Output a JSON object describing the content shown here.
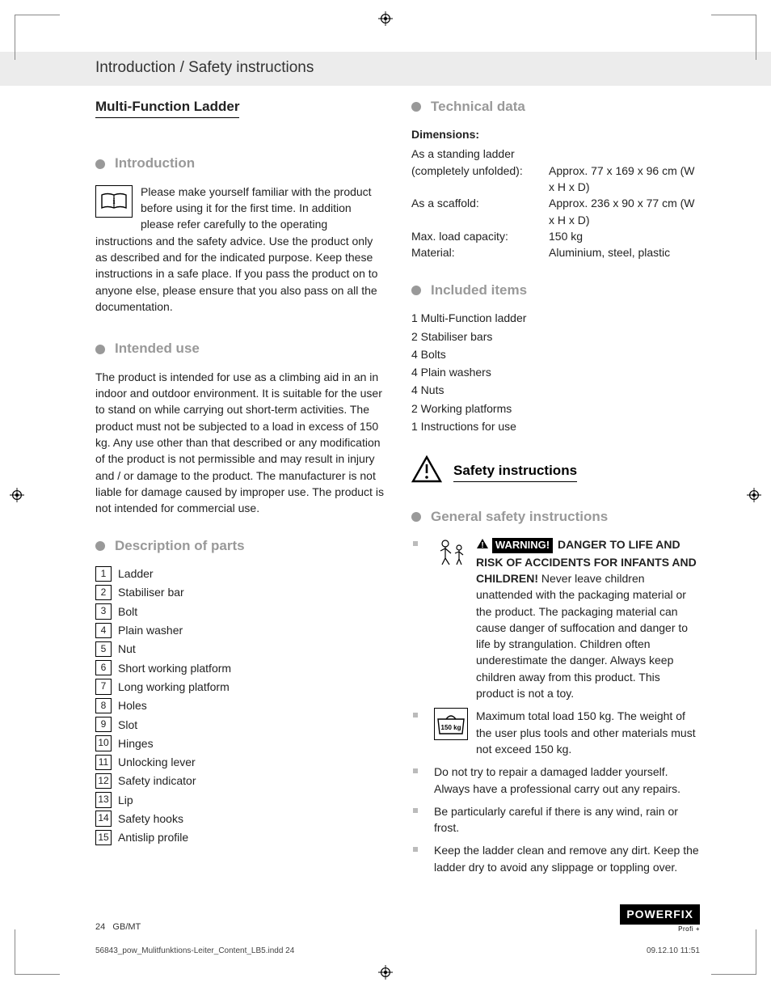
{
  "header_band": "Introduction / Safety instructions",
  "title": "Multi-Function Ladder",
  "sections": {
    "introduction": {
      "heading": "Introduction",
      "body": "Please make yourself familiar with the product before using it for the first time. In addition please refer carefully to the operating instructions and the safety advice. Use the product only as described and for the indicated purpose. Keep these instructions in a safe place. If you pass the product on to anyone else, please ensure that you also pass on all the documentation."
    },
    "intended_use": {
      "heading": "Intended use",
      "body": "The product is intended for use as a climbing aid in an in indoor and outdoor environment. It is suitable for the user to stand on while carrying out short-term activities. The product must not be subjected to a load in excess of 150 kg. Any use other than that described or any modification of the product is not permissible and may result in injury and / or damage to the product. The manufacturer is not liable for damage caused by improper use. The product is not intended for commercial use."
    },
    "description_of_parts": {
      "heading": "Description of parts",
      "items": [
        "Ladder",
        "Stabiliser bar",
        "Bolt",
        "Plain washer",
        "Nut",
        "Short working platform",
        "Long working platform",
        "Holes",
        "Slot",
        "Hinges",
        "Unlocking lever",
        "Safety indicator",
        "Lip",
        "Safety hooks",
        "Antislip profile"
      ]
    },
    "technical_data": {
      "heading": "Technical data",
      "dim_label": "Dimensions:",
      "rows": [
        {
          "k": "As a standing ladder",
          "v": ""
        },
        {
          "k": "(completely unfolded):",
          "v": "Approx. 77 x 169 x 96 cm (W x H x D)"
        },
        {
          "k": "As a scaffold:",
          "v": "Approx. 236 x 90 x 77 cm (W x H x D)"
        },
        {
          "k": "Max. load capacity:",
          "v": "150 kg"
        },
        {
          "k": "Material:",
          "v": "Aluminium, steel, plastic"
        }
      ]
    },
    "included_items": {
      "heading": "Included items",
      "items": [
        "1 Multi-Function ladder",
        "2 Stabiliser bars",
        "4 Bolts",
        "4 Plain washers",
        "4 Nuts",
        "2 Working platforms",
        "1 Instructions for use"
      ]
    },
    "safety": {
      "heading": "Safety instructions",
      "general_heading": "General safety instructions",
      "warning_label": "WARNING!",
      "warning_bold": " DANGER TO LIFE AND RISK OF ACCIDENTS FOR INFANTS AND CHILDREN!",
      "warning_body": " Never leave children unattended with the packaging material or the product. The packaging material can cause danger of suffocation and danger to life by strangulation. Children often underestimate the danger. Always keep children away from this product. This product is not a toy.",
      "load_icon_label": "150 kg",
      "bullets": [
        "Maximum total load 150 kg. The weight of the user plus tools and other materials must not exceed 150 kg.",
        "Do not try to repair a damaged ladder yourself. Always have a professional carry out any repairs.",
        "Be particularly careful if there is any wind, rain or frost.",
        "Keep the ladder clean and remove any dirt. Keep the ladder dry to avoid any slippage or toppling over."
      ]
    }
  },
  "footer": {
    "page_num": "24",
    "locale": "GB/MT",
    "brand": "POWERFIX",
    "brand_sub": "Profi +"
  },
  "printmeta": {
    "file": "56843_pow_Mulitfunktions-Leiter_Content_LB5.indd   24",
    "datetime": "09.12.10   11:51"
  },
  "style": {
    "colors": {
      "band_bg": "#ececec",
      "section_gray": "#999999",
      "bullet_gray": "#bbbbbb",
      "text": "#222222",
      "black": "#000000",
      "white": "#ffffff"
    },
    "fontsizes": {
      "body": 14,
      "band": 19,
      "title": 17,
      "section": 17,
      "footer": 11,
      "printmeta": 10
    }
  }
}
